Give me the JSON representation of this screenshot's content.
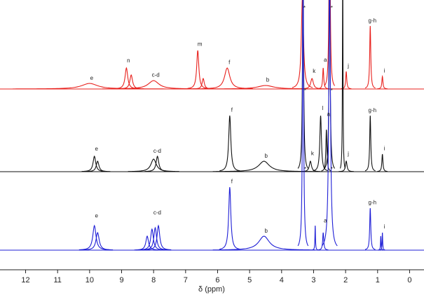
{
  "chart_data": {
    "type": "nmr",
    "xlabel": "δ (ppm)",
    "xlim": [
      12.8,
      -0.45
    ],
    "xticks": [
      12,
      11,
      10,
      9,
      8,
      7,
      6,
      5,
      4,
      3,
      2,
      1,
      0
    ],
    "series": [
      {
        "color": "#e8211d",
        "x": [
          10.0,
          8.85,
          8.7,
          8.0,
          6.62,
          6.45,
          5.7,
          4.5,
          3.35,
          3.05,
          2.7,
          2.5,
          1.98,
          1.23,
          0.85
        ],
        "values": [
          8,
          30,
          20,
          12,
          55,
          15,
          30,
          5,
          130,
          15,
          30,
          300,
          25,
          90,
          18
        ],
        "widths": [
          0.3,
          0.05,
          0.05,
          0.2,
          0.04,
          0.04,
          0.1,
          0.3,
          0.04,
          0.05,
          0.02,
          0.02,
          0.02,
          0.02,
          0.02
        ],
        "labels": [
          {
            "text": "e",
            "x": 10.0
          },
          {
            "text": "n",
            "x": 8.85
          },
          {
            "text": "c-d",
            "x": 8.0
          },
          {
            "text": "m",
            "x": 6.62
          },
          {
            "text": "f",
            "x": 5.7
          },
          {
            "text": "b",
            "x": 4.5
          },
          {
            "text": "*",
            "x": 3.35
          },
          {
            "text": "k",
            "x": 3.05
          },
          {
            "text": "a",
            "x": 2.7
          },
          {
            "text": "*",
            "x": 2.5
          },
          {
            "text": "j",
            "x": 1.98
          },
          {
            "text": "g-h",
            "x": 1.23
          },
          {
            "text": "i",
            "x": 0.85
          }
        ]
      },
      {
        "color": "#111111",
        "x": [
          9.85,
          9.75,
          8.0,
          7.88,
          5.62,
          4.55,
          3.33,
          3.1,
          2.78,
          2.6,
          2.5,
          2.09,
          1.98,
          1.23,
          0.85
        ],
        "values": [
          22,
          15,
          18,
          22,
          80,
          15,
          300,
          15,
          80,
          60,
          300,
          300,
          15,
          80,
          25
        ],
        "widths": [
          0.05,
          0.05,
          0.1,
          0.05,
          0.04,
          0.2,
          0.02,
          0.04,
          0.03,
          0.02,
          0.02,
          0.01,
          0.03,
          0.02,
          0.02
        ],
        "labels": [
          {
            "text": "e",
            "x": 9.85
          },
          {
            "text": "c-d",
            "x": 7.95
          },
          {
            "text": "f",
            "x": 5.62
          },
          {
            "text": "b",
            "x": 4.55
          },
          {
            "text": "*",
            "x": 3.33
          },
          {
            "text": "k",
            "x": 3.1
          },
          {
            "text": "l",
            "x": 2.78
          },
          {
            "text": "a",
            "x": 2.6
          },
          {
            "text": "*",
            "x": 2.5
          },
          {
            "text": "j",
            "x": 1.98
          },
          {
            "text": "g-h",
            "x": 1.23
          },
          {
            "text": "i",
            "x": 0.85
          }
        ]
      },
      {
        "color": "#1f1fd6",
        "x": [
          9.85,
          9.75,
          8.2,
          8.05,
          7.95,
          7.85,
          5.62,
          4.55,
          3.33,
          2.95,
          2.7,
          2.5,
          1.23,
          0.9,
          0.85
        ],
        "values": [
          35,
          25,
          20,
          30,
          32,
          35,
          90,
          20,
          400,
          35,
          25,
          400,
          60,
          20,
          25
        ],
        "widths": [
          0.06,
          0.06,
          0.05,
          0.05,
          0.05,
          0.05,
          0.04,
          0.2,
          0.02,
          0.01,
          0.02,
          0.03,
          0.02,
          0.01,
          0.01
        ],
        "labels": [
          {
            "text": "e",
            "x": 9.85
          },
          {
            "text": "c-d",
            "x": 7.95
          },
          {
            "text": "f",
            "x": 5.62
          },
          {
            "text": "b",
            "x": 4.55
          },
          {
            "text": "*",
            "x": 3.33
          },
          {
            "text": "a",
            "x": 2.7
          },
          {
            "text": "*",
            "x": 2.5
          },
          {
            "text": "g-h",
            "x": 1.23
          },
          {
            "text": "i",
            "x": 0.85
          }
        ]
      }
    ]
  }
}
